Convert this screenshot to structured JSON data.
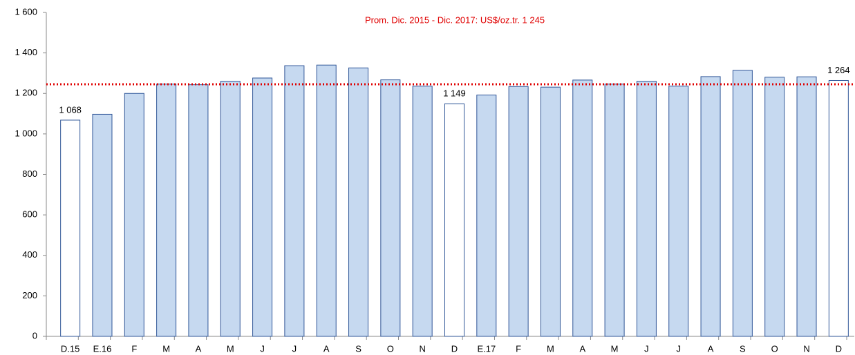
{
  "chart_data": {
    "type": "bar",
    "annotation": "Prom. Dic. 2015 - Dic. 2017: US$/oz.tr. 1 245",
    "reference_line": {
      "value": 1245,
      "color": "#e00000"
    },
    "categories": [
      "D.15",
      "E.16",
      "F",
      "M",
      "A",
      "M",
      "J",
      "J",
      "A",
      "S",
      "O",
      "N",
      "D",
      "E.17",
      "F",
      "M",
      "A",
      "M",
      "J",
      "J",
      "A",
      "S",
      "O",
      "N",
      "D"
    ],
    "values": [
      1068,
      1097,
      1200,
      1246,
      1243,
      1260,
      1276,
      1337,
      1340,
      1326,
      1267,
      1236,
      1149,
      1192,
      1234,
      1231,
      1266,
      1246,
      1260,
      1236,
      1283,
      1314,
      1280,
      1282,
      1264
    ],
    "value_labels": [
      "1 068",
      null,
      null,
      null,
      null,
      null,
      null,
      null,
      null,
      null,
      null,
      null,
      "1 149",
      null,
      null,
      null,
      null,
      null,
      null,
      null,
      null,
      null,
      null,
      null,
      "1 264"
    ],
    "colors": [
      "#ffffff",
      "#c6d9f0",
      "#c6d9f0",
      "#c6d9f0",
      "#c6d9f0",
      "#c6d9f0",
      "#c6d9f0",
      "#c6d9f0",
      "#c6d9f0",
      "#c6d9f0",
      "#c6d9f0",
      "#c6d9f0",
      "#ffffff",
      "#c6d9f0",
      "#c6d9f0",
      "#c6d9f0",
      "#c6d9f0",
      "#c6d9f0",
      "#c6d9f0",
      "#c6d9f0",
      "#c6d9f0",
      "#c6d9f0",
      "#c6d9f0",
      "#c6d9f0",
      "#ffffff"
    ],
    "border_color": "#2f5597",
    "ylim": [
      0,
      1600
    ],
    "yticks": [
      0,
      200,
      400,
      600,
      800,
      {
        "value": 1000,
        "label": "1 000"
      },
      {
        "value": 1200,
        "label": "1 200"
      },
      {
        "value": 1400,
        "label": "1 400"
      },
      {
        "value": 1600,
        "label": "1 600"
      }
    ],
    "grid": false
  }
}
